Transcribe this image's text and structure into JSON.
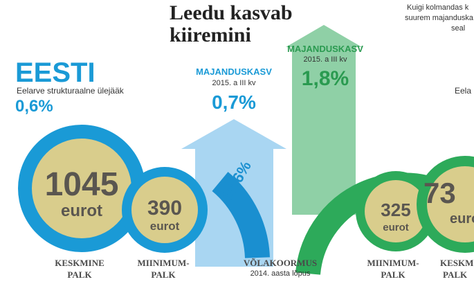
{
  "title": [
    "Leedu kasvab",
    "kiiremini"
  ],
  "intro": [
    "Kuigi kolmandas k",
    "suurem majanduska",
    "seal"
  ],
  "estonia": {
    "name": "EESTI",
    "budget_label": "Eelarve strukturaalne ülejääk",
    "budget_value": "0,6%",
    "average_wage": {
      "amount": "1045",
      "unit": "eurot",
      "label": [
        "KESKMINE",
        "PALK"
      ]
    },
    "minimum_wage": {
      "amount": "390",
      "unit": "eurot",
      "label": [
        "MIINIMUM-",
        "PALK"
      ]
    }
  },
  "growth_estonia": {
    "label": "MAJANDUSKASV",
    "period": "2015. a III kv",
    "value": "0,7%"
  },
  "growth_lithuania": {
    "label": "MAJANDUSKASV",
    "period": "2015. a III kv",
    "value": "1,8%"
  },
  "debt": {
    "value": "10,6%",
    "label": "VÕLAKOORMUS",
    "period": "2014. aasta lõpus"
  },
  "lithuania": {
    "budget_label": "Eela",
    "minimum_wage": {
      "amount": "325",
      "unit": "eurot",
      "label": [
        "MIINIMUM-",
        "PALK"
      ]
    },
    "average_wage": {
      "amount": "73",
      "unit": "euro",
      "label": [
        "KESKM",
        "PALK"
      ]
    }
  }
}
